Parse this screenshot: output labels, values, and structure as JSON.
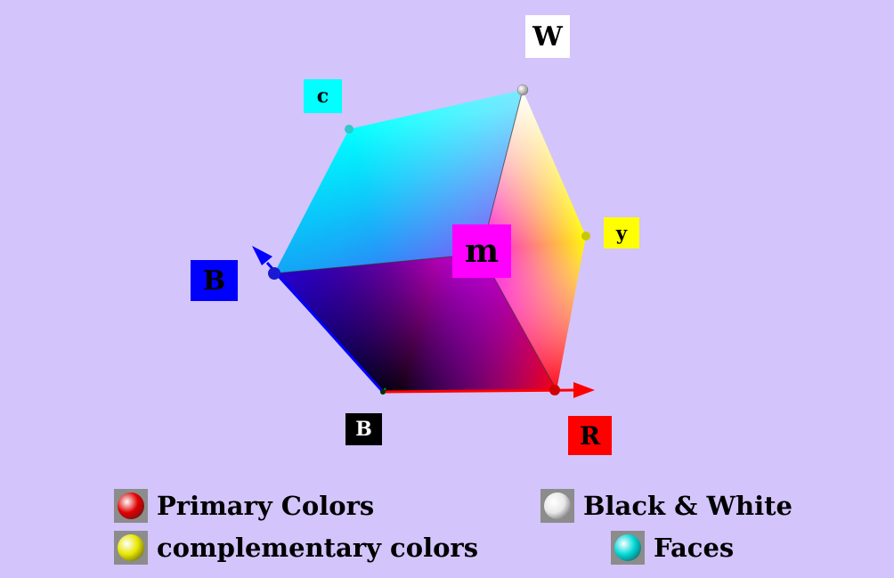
{
  "vertex_labels": {
    "white": {
      "text": "W",
      "color": "#ffffff",
      "text_color": "#000000"
    },
    "cyan": {
      "text": "c",
      "color": "#00ffff",
      "text_color": "#000000"
    },
    "yellow": {
      "text": "y",
      "color": "#ffff00",
      "text_color": "#000000"
    },
    "magenta": {
      "text": "m",
      "color": "#ff00ff",
      "text_color": "#000000"
    },
    "blue": {
      "text": "B",
      "color": "#0000ff",
      "text_color": "#000000"
    },
    "black": {
      "text": "B",
      "color": "#000000",
      "text_color": "#ffffff"
    },
    "red": {
      "text": "R",
      "color": "#ff0000",
      "text_color": "#000000"
    }
  },
  "legend": {
    "primary": {
      "label": "Primary Colors",
      "ball_color": "#e00000"
    },
    "complementary": {
      "label": "complementary colors",
      "ball_color": "#e6e600"
    },
    "black_white": {
      "label": "Black & White",
      "ball_color": "#e8e8e8"
    },
    "faces": {
      "label": "Faces",
      "ball_color": "#00d8d8"
    }
  },
  "colors": {
    "background": "#d3c4fb",
    "swatch_frame": "#8c8c8c",
    "blue_axis": "#0000ff",
    "red_axis": "#ff0000"
  }
}
